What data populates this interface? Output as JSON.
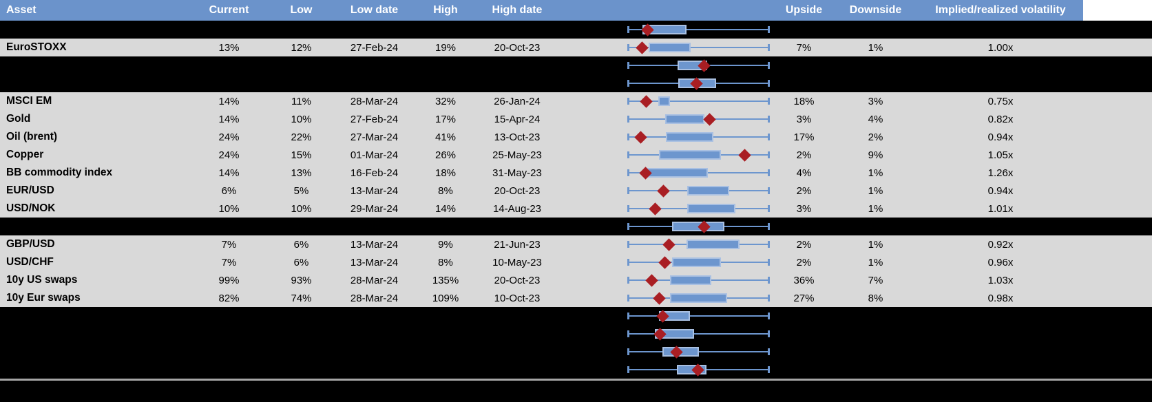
{
  "colors": {
    "header_bg": "#6B93CB",
    "header_text": "#FFFFFF",
    "row_bg": "#D9D9D9",
    "spacer_bg": "#000000",
    "box_fill": "#6D96CE",
    "box_border": "#A9C0E2",
    "whisker": "#6D96CE",
    "marker_red": "#A91E23",
    "bottom_divider": "#A6A6A6"
  },
  "table": {
    "columns": [
      {
        "key": "asset",
        "label": "Asset"
      },
      {
        "key": "current",
        "label": "Current"
      },
      {
        "key": "low",
        "label": "Low"
      },
      {
        "key": "low_date",
        "label": "Low date"
      },
      {
        "key": "high",
        "label": "High"
      },
      {
        "key": "high_date",
        "label": "High date"
      },
      {
        "key": "chart",
        "label": ""
      },
      {
        "key": "upside",
        "label": "Upside"
      },
      {
        "key": "downside",
        "label": "Downside"
      },
      {
        "key": "implied",
        "label": "Implied/realized volatility"
      }
    ],
    "rows": [
      {
        "kind": "spacer",
        "plot": {
          "box": [
            0.102,
            0.415
          ],
          "marker": 0.137
        }
      },
      {
        "kind": "data",
        "asset": "EuroSTOXX",
        "current": "13%",
        "low": "12%",
        "low_date": "27-Feb-24",
        "high": "19%",
        "high_date": "20-Oct-23",
        "upside": "7%",
        "downside": "1%",
        "implied": "1.00x",
        "plot": {
          "box": [
            0.146,
            0.444
          ],
          "marker": 0.098
        }
      },
      {
        "kind": "spacer",
        "plot": {
          "box": [
            0.351,
            0.561
          ],
          "marker": 0.537
        }
      },
      {
        "kind": "spacer",
        "plot": {
          "box": [
            0.356,
            0.624
          ],
          "marker": 0.483
        }
      },
      {
        "kind": "data",
        "asset": "MSCI EM",
        "current": "14%",
        "low": "11%",
        "low_date": "28-Mar-24",
        "high": "32%",
        "high_date": "26-Jan-24",
        "upside": "18%",
        "downside": "3%",
        "implied": "0.75x",
        "plot": {
          "box": [
            0.215,
            0.298
          ],
          "marker": 0.127
        }
      },
      {
        "kind": "data",
        "asset": "Gold",
        "current": "14%",
        "low": "10%",
        "low_date": "27-Feb-24",
        "high": "17%",
        "high_date": "15-Apr-24",
        "upside": "3%",
        "downside": "4%",
        "implied": "0.82x",
        "plot": {
          "box": [
            0.263,
            0.541
          ],
          "marker": 0.58
        }
      },
      {
        "kind": "data",
        "asset": "Oil (brent)",
        "current": "24%",
        "low": "22%",
        "low_date": "27-Mar-24",
        "high": "41%",
        "high_date": "13-Oct-23",
        "upside": "17%",
        "downside": "2%",
        "implied": "0.94x",
        "plot": {
          "box": [
            0.268,
            0.605
          ],
          "marker": 0.088
        }
      },
      {
        "kind": "data",
        "asset": "Copper",
        "current": "24%",
        "low": "15%",
        "low_date": "01-Mar-24",
        "high": "26%",
        "high_date": "25-May-23",
        "upside": "2%",
        "downside": "9%",
        "implied": "1.05x",
        "plot": {
          "box": [
            0.22,
            0.659
          ],
          "marker": 0.829
        }
      },
      {
        "kind": "data",
        "asset": "BB commodity index",
        "current": "14%",
        "low": "13%",
        "low_date": "16-Feb-24",
        "high": "18%",
        "high_date": "31-May-23",
        "upside": "4%",
        "downside": "1%",
        "implied": "1.26x",
        "plot": {
          "box": [
            0.137,
            0.566
          ],
          "marker": 0.122
        }
      },
      {
        "kind": "data",
        "asset": "EUR/USD",
        "current": "6%",
        "low": "5%",
        "low_date": "13-Mar-24",
        "high": "8%",
        "high_date": "20-Oct-23",
        "upside": "2%",
        "downside": "1%",
        "implied": "0.94x",
        "plot": {
          "box": [
            0.42,
            0.717
          ],
          "marker": 0.249
        }
      },
      {
        "kind": "data",
        "asset": "USD/NOK",
        "current": "10%",
        "low": "10%",
        "low_date": "29-Mar-24",
        "high": "14%",
        "high_date": "14-Aug-23",
        "upside": "3%",
        "downside": "1%",
        "implied": "1.01x",
        "plot": {
          "box": [
            0.42,
            0.761
          ],
          "marker": 0.195
        }
      },
      {
        "kind": "spacer",
        "plot": {
          "box": [
            0.312,
            0.683
          ],
          "marker": 0.537
        }
      },
      {
        "kind": "data",
        "asset": "GBP/USD",
        "current": "7%",
        "low": "6%",
        "low_date": "13-Mar-24",
        "high": "9%",
        "high_date": "21-Jun-23",
        "upside": "2%",
        "downside": "1%",
        "implied": "0.92x",
        "plot": {
          "box": [
            0.415,
            0.79
          ],
          "marker": 0.288
        }
      },
      {
        "kind": "data",
        "asset": "USD/CHF",
        "current": "7%",
        "low": "6%",
        "low_date": "13-Mar-24",
        "high": "8%",
        "high_date": "10-May-23",
        "upside": "2%",
        "downside": "1%",
        "implied": "0.96x",
        "plot": {
          "box": [
            0.312,
            0.659
          ],
          "marker": 0.263
        }
      },
      {
        "kind": "data",
        "asset": "10y US swaps",
        "current": "99%",
        "low": "93%",
        "low_date": "28-Mar-24",
        "high": "135%",
        "high_date": "20-Oct-23",
        "upside": "36%",
        "downside": "7%",
        "implied": "1.03x",
        "plot": {
          "box": [
            0.298,
            0.59
          ],
          "marker": 0.166
        }
      },
      {
        "kind": "data",
        "asset": "10y Eur swaps",
        "current": "82%",
        "low": "74%",
        "low_date": "28-Mar-24",
        "high": "109%",
        "high_date": "10-Oct-23",
        "upside": "27%",
        "downside": "8%",
        "implied": "0.98x",
        "plot": {
          "box": [
            0.298,
            0.702
          ],
          "marker": 0.224
        }
      },
      {
        "kind": "spacer",
        "plot": {
          "box": [
            0.22,
            0.439
          ],
          "marker": 0.244
        }
      },
      {
        "kind": "spacer",
        "plot": {
          "box": [
            0.19,
            0.468
          ],
          "marker": 0.229
        }
      },
      {
        "kind": "spacer",
        "plot": {
          "box": [
            0.244,
            0.502
          ],
          "marker": 0.346
        }
      },
      {
        "kind": "spacer",
        "plot": {
          "box": [
            0.346,
            0.556
          ],
          "marker": 0.493
        }
      }
    ]
  },
  "chart_data": {
    "type": "boxplot",
    "orientation": "horizontal",
    "title": "1-year implied volatility range per asset (whisker = low-high range, blue box = central range, red diamond = current level); positions normalized 0-1 across the identical whisker span",
    "legend_position": "none",
    "axis": {
      "visible": false,
      "range": [
        0,
        1
      ]
    },
    "rows": [
      {
        "label": "",
        "box": [
          0.102,
          0.415
        ],
        "marker": 0.137
      },
      {
        "label": "EuroSTOXX",
        "box": [
          0.146,
          0.444
        ],
        "marker": 0.098
      },
      {
        "label": "",
        "box": [
          0.351,
          0.561
        ],
        "marker": 0.537
      },
      {
        "label": "",
        "box": [
          0.356,
          0.624
        ],
        "marker": 0.483
      },
      {
        "label": "MSCI EM",
        "box": [
          0.215,
          0.298
        ],
        "marker": 0.127
      },
      {
        "label": "Gold",
        "box": [
          0.263,
          0.541
        ],
        "marker": 0.58
      },
      {
        "label": "Oil (brent)",
        "box": [
          0.268,
          0.605
        ],
        "marker": 0.088
      },
      {
        "label": "Copper",
        "box": [
          0.22,
          0.659
        ],
        "marker": 0.829
      },
      {
        "label": "BB commodity index",
        "box": [
          0.137,
          0.566
        ],
        "marker": 0.122
      },
      {
        "label": "EUR/USD",
        "box": [
          0.42,
          0.717
        ],
        "marker": 0.249
      },
      {
        "label": "USD/NOK",
        "box": [
          0.42,
          0.761
        ],
        "marker": 0.195
      },
      {
        "label": "",
        "box": [
          0.312,
          0.683
        ],
        "marker": 0.537
      },
      {
        "label": "GBP/USD",
        "box": [
          0.415,
          0.79
        ],
        "marker": 0.288
      },
      {
        "label": "USD/CHF",
        "box": [
          0.312,
          0.659
        ],
        "marker": 0.263
      },
      {
        "label": "10y US swaps",
        "box": [
          0.298,
          0.59
        ],
        "marker": 0.166
      },
      {
        "label": "10y Eur swaps",
        "box": [
          0.298,
          0.702
        ],
        "marker": 0.224
      },
      {
        "label": "",
        "box": [
          0.22,
          0.439
        ],
        "marker": 0.244
      },
      {
        "label": "",
        "box": [
          0.19,
          0.468
        ],
        "marker": 0.229
      },
      {
        "label": "",
        "box": [
          0.244,
          0.502
        ],
        "marker": 0.346
      },
      {
        "label": "",
        "box": [
          0.346,
          0.556
        ],
        "marker": 0.493
      }
    ]
  }
}
